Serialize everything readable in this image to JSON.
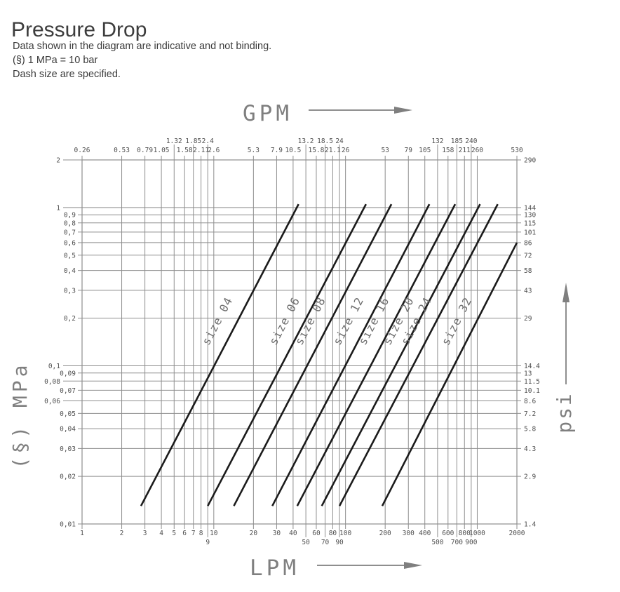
{
  "page": {
    "title": "Pressure Drop",
    "notes": [
      "Data shown in the diagram are indicative and not binding.",
      "(§) 1 MPa = 10 bar",
      "Dash size are specified."
    ]
  },
  "chart_data": {
    "type": "line",
    "x_scale": "log",
    "y_scale": "log",
    "x_range_lpm": [
      1,
      2000
    ],
    "y_range_mpa": [
      0.01,
      2
    ],
    "grid": "on",
    "bottom_axis": {
      "label": "LPM",
      "ticks": [
        {
          "v": 1,
          "label": "1",
          "row": 0
        },
        {
          "v": 2,
          "label": "2",
          "row": 0
        },
        {
          "v": 3,
          "label": "3",
          "row": 0
        },
        {
          "v": 4,
          "label": "4",
          "row": 0
        },
        {
          "v": 5,
          "label": "5",
          "row": 0
        },
        {
          "v": 6,
          "label": "6",
          "row": 0
        },
        {
          "v": 7,
          "label": "7",
          "row": 0
        },
        {
          "v": 8,
          "label": "8",
          "row": 0
        },
        {
          "v": 9,
          "label": "9",
          "row": 1
        },
        {
          "v": 10,
          "label": "10",
          "row": 0
        },
        {
          "v": 20,
          "label": "20",
          "row": 0
        },
        {
          "v": 30,
          "label": "30",
          "row": 0
        },
        {
          "v": 40,
          "label": "40",
          "row": 0
        },
        {
          "v": 50,
          "label": "50",
          "row": 1
        },
        {
          "v": 60,
          "label": "60",
          "row": 0
        },
        {
          "v": 70,
          "label": "70",
          "row": 1
        },
        {
          "v": 80,
          "label": "80",
          "row": 0
        },
        {
          "v": 90,
          "label": "90",
          "row": 1
        },
        {
          "v": 100,
          "label": "100",
          "row": 0
        },
        {
          "v": 200,
          "label": "200",
          "row": 0
        },
        {
          "v": 300,
          "label": "300",
          "row": 0
        },
        {
          "v": 400,
          "label": "400",
          "row": 0
        },
        {
          "v": 500,
          "label": "500",
          "row": 1
        },
        {
          "v": 600,
          "label": "600",
          "row": 0
        },
        {
          "v": 700,
          "label": "700",
          "row": 1
        },
        {
          "v": 800,
          "label": "800",
          "row": 0
        },
        {
          "v": 900,
          "label": "900",
          "row": 1
        },
        {
          "v": 1000,
          "label": "1000",
          "row": 0
        },
        {
          "v": 2000,
          "label": "2000",
          "row": 0
        }
      ]
    },
    "top_axis": {
      "label": "GPM",
      "ticks": [
        {
          "v": 1,
          "label": "0.26",
          "row": 0
        },
        {
          "v": 2,
          "label": "0.53",
          "row": 0
        },
        {
          "v": 3,
          "label": "0.79",
          "row": 0
        },
        {
          "v": 4,
          "label": "1.05",
          "row": 0
        },
        {
          "v": 5,
          "label": "1.32",
          "row": 1
        },
        {
          "v": 6,
          "label": "1.58",
          "row": 0
        },
        {
          "v": 7,
          "label": "1.85",
          "row": 1
        },
        {
          "v": 8,
          "label": "2.11",
          "row": 0
        },
        {
          "v": 9,
          "label": "2.4",
          "row": 1
        },
        {
          "v": 10,
          "label": "2.6",
          "row": 0
        },
        {
          "v": 20,
          "label": "5.3",
          "row": 0
        },
        {
          "v": 30,
          "label": "7.9",
          "row": 0
        },
        {
          "v": 40,
          "label": "10.5",
          "row": 0
        },
        {
          "v": 50,
          "label": "13.2",
          "row": 1
        },
        {
          "v": 60,
          "label": "15.8",
          "row": 0
        },
        {
          "v": 70,
          "label": "18.5",
          "row": 1
        },
        {
          "v": 80,
          "label": "21.1",
          "row": 0
        },
        {
          "v": 90,
          "label": "24",
          "row": 1
        },
        {
          "v": 100,
          "label": "26",
          "row": 0
        },
        {
          "v": 200,
          "label": "53",
          "row": 0
        },
        {
          "v": 300,
          "label": "79",
          "row": 0
        },
        {
          "v": 400,
          "label": "105",
          "row": 0
        },
        {
          "v": 500,
          "label": "132",
          "row": 1
        },
        {
          "v": 600,
          "label": "158",
          "row": 0
        },
        {
          "v": 700,
          "label": "185",
          "row": 1
        },
        {
          "v": 800,
          "label": "211",
          "row": 0
        },
        {
          "v": 900,
          "label": "240",
          "row": 1
        },
        {
          "v": 1000,
          "label": "260",
          "row": 0
        },
        {
          "v": 2000,
          "label": "530",
          "row": 0
        }
      ]
    },
    "left_axis": {
      "label": "(§) MPa",
      "ticks": [
        {
          "v": 2,
          "label": "2",
          "offset": 1
        },
        {
          "v": 1,
          "label": "1",
          "offset": 1
        },
        {
          "v": 0.9,
          "label": "0,9",
          "offset": 0
        },
        {
          "v": 0.8,
          "label": "0,8",
          "offset": 0
        },
        {
          "v": 0.7,
          "label": "0,7",
          "offset": 0
        },
        {
          "v": 0.6,
          "label": "0,6",
          "offset": 0
        },
        {
          "v": 0.5,
          "label": "0,5",
          "offset": 0
        },
        {
          "v": 0.4,
          "label": "0,4",
          "offset": 0
        },
        {
          "v": 0.3,
          "label": "0,3",
          "offset": 0
        },
        {
          "v": 0.2,
          "label": "0,2",
          "offset": 0
        },
        {
          "v": 0.1,
          "label": "0,1",
          "offset": 1
        },
        {
          "v": 0.09,
          "label": "0,09",
          "offset": 0
        },
        {
          "v": 0.08,
          "label": "0,08",
          "offset": 1
        },
        {
          "v": 0.07,
          "label": "0,07",
          "offset": 0
        },
        {
          "v": 0.06,
          "label": "0,06",
          "offset": 1
        },
        {
          "v": 0.05,
          "label": "0,05",
          "offset": 0
        },
        {
          "v": 0.04,
          "label": "0,04",
          "offset": 0
        },
        {
          "v": 0.03,
          "label": "0,03",
          "offset": 0
        },
        {
          "v": 0.02,
          "label": "0,02",
          "offset": 0
        },
        {
          "v": 0.01,
          "label": "0,01",
          "offset": 0
        }
      ]
    },
    "right_axis": {
      "label": "psi",
      "ticks": [
        {
          "v": 2,
          "label": "290"
        },
        {
          "v": 1,
          "label": "144"
        },
        {
          "v": 0.9,
          "label": "130"
        },
        {
          "v": 0.8,
          "label": "115"
        },
        {
          "v": 0.7,
          "label": "101"
        },
        {
          "v": 0.6,
          "label": "86"
        },
        {
          "v": 0.5,
          "label": "72"
        },
        {
          "v": 0.4,
          "label": "58"
        },
        {
          "v": 0.3,
          "label": "43"
        },
        {
          "v": 0.2,
          "label": "29"
        },
        {
          "v": 0.1,
          "label": "14.4"
        },
        {
          "v": 0.09,
          "label": "13"
        },
        {
          "v": 0.08,
          "label": "11.5"
        },
        {
          "v": 0.07,
          "label": "10.1"
        },
        {
          "v": 0.06,
          "label": "8.6"
        },
        {
          "v": 0.05,
          "label": "7.2"
        },
        {
          "v": 0.04,
          "label": "5.8"
        },
        {
          "v": 0.03,
          "label": "4.3"
        },
        {
          "v": 0.02,
          "label": "2.9"
        },
        {
          "v": 0.01,
          "label": "1.4"
        }
      ]
    },
    "series": [
      {
        "name": "size 04",
        "points": [
          [
            2.8,
            0.013
          ],
          [
            44,
            1.05
          ]
        ]
      },
      {
        "name": "size 06",
        "points": [
          [
            9,
            0.013
          ],
          [
            143,
            1.05
          ]
        ]
      },
      {
        "name": "size 08",
        "points": [
          [
            14.2,
            0.013
          ],
          [
            223,
            1.05
          ]
        ]
      },
      {
        "name": "size 12",
        "points": [
          [
            27.8,
            0.013
          ],
          [
            433,
            1.05
          ]
        ]
      },
      {
        "name": "size 16",
        "points": [
          [
            43,
            0.013
          ],
          [
            680,
            1.05
          ]
        ]
      },
      {
        "name": "size 20",
        "points": [
          [
            66,
            0.013
          ],
          [
            1050,
            1.05
          ]
        ]
      },
      {
        "name": "size 24",
        "points": [
          [
            90,
            0.013
          ],
          [
            1430,
            1.05
          ]
        ]
      },
      {
        "name": "size 32",
        "points": [
          [
            190,
            0.013
          ],
          [
            2000,
            0.6
          ]
        ]
      }
    ],
    "series_label_at_mpa": 0.17,
    "colors": {
      "grid": "#8e8e8e",
      "series_line": "#1b1b1b",
      "tick_text": "#4f4f4f",
      "axis_title": "#7f7f7f",
      "series_label": "#6f6f6f",
      "page_text": "#3d3d3d"
    }
  }
}
